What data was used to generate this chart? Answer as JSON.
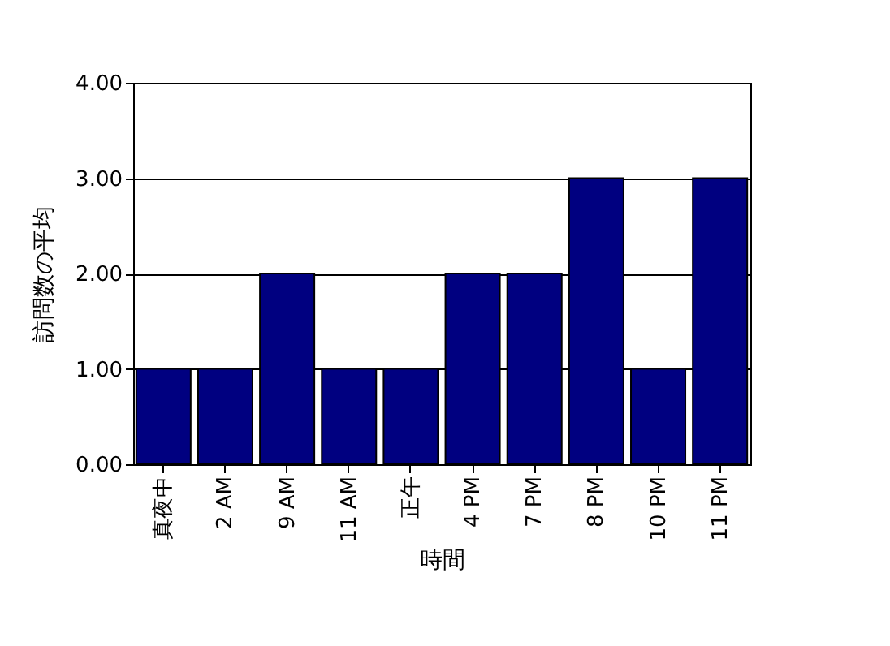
{
  "chart_data": {
    "type": "bar",
    "xlabel": "時間",
    "ylabel": "訪問数の平均",
    "categories": [
      "真夜中",
      "2 AM",
      "9 AM",
      "11 AM",
      "正午",
      "4 PM",
      "7 PM",
      "8 PM",
      "10 PM",
      "11 PM"
    ],
    "values": [
      1,
      1,
      2,
      1,
      1,
      2,
      2,
      3,
      1,
      3
    ],
    "color": "#000080",
    "ylim": [
      0,
      4
    ],
    "yticks": [
      {
        "value": 0,
        "label": "0.00"
      },
      {
        "value": 1,
        "label": "1.00"
      },
      {
        "value": 2,
        "label": "2.00"
      },
      {
        "value": 3,
        "label": "3.00"
      },
      {
        "value": 4,
        "label": "4.00"
      }
    ],
    "grid": "y"
  }
}
